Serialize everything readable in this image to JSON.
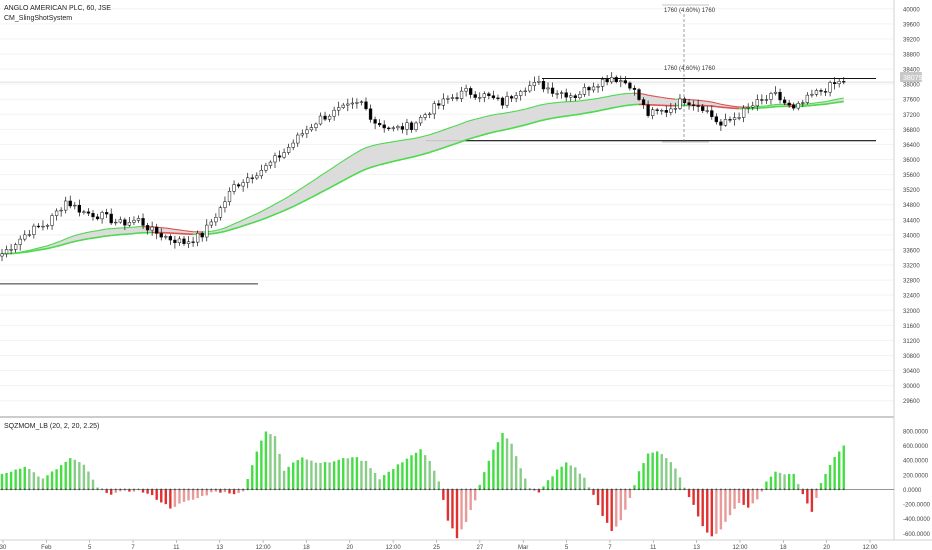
{
  "header": {
    "symbol_title": "ANGLO AMERICAN PLC, 60, JSE",
    "indicator_title": "CM_SlingShotSystem"
  },
  "price_axis": {
    "ticks": [
      "40000",
      "39600",
      "39200",
      "38800",
      "38400",
      "38000",
      "37600",
      "37200",
      "36800",
      "36400",
      "36000",
      "35600",
      "35200",
      "34800",
      "34400",
      "34000",
      "33600",
      "33200",
      "32800",
      "32400",
      "32000",
      "31600",
      "31200",
      "30800",
      "30400",
      "30000",
      "29600"
    ],
    "last_price": "38079",
    "last_price_color": "#c8c8c8"
  },
  "momentum_panel": {
    "title": "SQZMOM_LB (20, 2, 20, 2.25)",
    "ticks": [
      "800.0000",
      "600.0000",
      "400.0000",
      "200.0000",
      "0.0000",
      "-200.0000",
      "-400.0000",
      "-600.0000"
    ]
  },
  "time_axis": {
    "labels": [
      "30",
      "Feb",
      "5",
      "7",
      "11",
      "13",
      "12:00",
      "18",
      "20",
      "12:00",
      "25",
      "27",
      "Mar",
      "5",
      "7",
      "11",
      "13",
      "12:00",
      "18",
      "20",
      "12:00"
    ]
  },
  "annotations": {
    "measure_top": "1760 (4.60%) 1760",
    "measure_mid": "1760 (4.60%) 1760"
  },
  "colors": {
    "up_candle": "#ffffff",
    "down_candle": "#000000",
    "ema_fast_up": "#4cd94c",
    "ema_down": "#e05050",
    "ema_band_fill": "#d8d8d8",
    "momentum_up_strong": "#44dd44",
    "momentum_up_weak": "#88cc88",
    "momentum_down_strong": "#e03030",
    "momentum_down_weak": "#e89a9a"
  },
  "chart_data": {
    "type": "candlestick",
    "title": "ANGLO AMERICAN PLC, 60, JSE",
    "ylim": [
      29300,
      40100
    ],
    "price_control_points": [
      [
        0,
        33500
      ],
      [
        6,
        34100
      ],
      [
        10,
        34300
      ],
      [
        14,
        34900
      ],
      [
        18,
        34600
      ],
      [
        22,
        34500
      ],
      [
        26,
        34300
      ],
      [
        30,
        34400
      ],
      [
        33,
        34100
      ],
      [
        37,
        33900
      ],
      [
        40,
        33800
      ],
      [
        44,
        34000
      ],
      [
        48,
        34700
      ],
      [
        51,
        35300
      ],
      [
        55,
        35600
      ],
      [
        58,
        35800
      ],
      [
        62,
        36200
      ],
      [
        66,
        36700
      ],
      [
        70,
        37100
      ],
      [
        74,
        37300
      ],
      [
        79,
        37500
      ],
      [
        82,
        37000
      ],
      [
        86,
        36800
      ],
      [
        90,
        36900
      ],
      [
        94,
        37300
      ],
      [
        98,
        37600
      ],
      [
        102,
        37800
      ],
      [
        106,
        37700
      ],
      [
        110,
        37500
      ],
      [
        114,
        37900
      ],
      [
        118,
        38000
      ],
      [
        122,
        37800
      ],
      [
        126,
        37700
      ],
      [
        130,
        38000
      ],
      [
        134,
        38200
      ],
      [
        138,
        38000
      ],
      [
        142,
        37200
      ],
      [
        146,
        37300
      ],
      [
        150,
        37600
      ],
      [
        154,
        37400
      ],
      [
        158,
        36900
      ],
      [
        162,
        37200
      ],
      [
        166,
        37500
      ],
      [
        170,
        37700
      ],
      [
        174,
        37300
      ],
      [
        178,
        37700
      ],
      [
        183,
        38000
      ],
      [
        185,
        38079
      ]
    ],
    "levels": [
      {
        "name": "resistance",
        "value": 38150
      },
      {
        "name": "support",
        "value": 36500
      },
      {
        "name": "lower-support",
        "value": 32700
      }
    ],
    "momentum_control_points": [
      [
        0,
        200
      ],
      [
        5,
        320
      ],
      [
        9,
        140
      ],
      [
        12,
        280
      ],
      [
        15,
        420
      ],
      [
        18,
        340
      ],
      [
        21,
        20
      ],
      [
        24,
        -60
      ],
      [
        27,
        -30
      ],
      [
        30,
        -10
      ],
      [
        33,
        -90
      ],
      [
        37,
        -250
      ],
      [
        40,
        -180
      ],
      [
        43,
        -120
      ],
      [
        47,
        -20
      ],
      [
        50,
        -60
      ],
      [
        53,
        -30
      ],
      [
        56,
        520
      ],
      [
        58,
        790
      ],
      [
        60,
        720
      ],
      [
        62,
        260
      ],
      [
        64,
        380
      ],
      [
        66,
        440
      ],
      [
        68,
        390
      ],
      [
        71,
        360
      ],
      [
        74,
        400
      ],
      [
        77,
        450
      ],
      [
        80,
        380
      ],
      [
        83,
        150
      ],
      [
        86,
        280
      ],
      [
        89,
        430
      ],
      [
        92,
        540
      ],
      [
        94,
        380
      ],
      [
        96,
        120
      ],
      [
        98,
        -420
      ],
      [
        100,
        -670
      ],
      [
        102,
        -450
      ],
      [
        104,
        -140
      ],
      [
        106,
        250
      ],
      [
        108,
        540
      ],
      [
        110,
        760
      ],
      [
        112,
        630
      ],
      [
        114,
        300
      ],
      [
        116,
        10
      ],
      [
        118,
        -50
      ],
      [
        120,
        120
      ],
      [
        122,
        260
      ],
      [
        124,
        360
      ],
      [
        126,
        300
      ],
      [
        128,
        150
      ],
      [
        130,
        -80
      ],
      [
        132,
        -350
      ],
      [
        134,
        -580
      ],
      [
        136,
        -430
      ],
      [
        138,
        -120
      ],
      [
        140,
        250
      ],
      [
        142,
        490
      ],
      [
        144,
        520
      ],
      [
        146,
        420
      ],
      [
        148,
        300
      ],
      [
        150,
        10
      ],
      [
        152,
        -200
      ],
      [
        154,
        -510
      ],
      [
        156,
        -640
      ],
      [
        158,
        -560
      ],
      [
        160,
        -340
      ],
      [
        162,
        -180
      ],
      [
        164,
        -250
      ],
      [
        166,
        -130
      ],
      [
        168,
        100
      ],
      [
        170,
        250
      ],
      [
        172,
        200
      ],
      [
        174,
        220
      ],
      [
        176,
        -60
      ],
      [
        178,
        -310
      ],
      [
        180,
        100
      ],
      [
        182,
        340
      ],
      [
        185,
        610
      ]
    ],
    "momentum_ylim": [
      -650,
      880
    ]
  }
}
